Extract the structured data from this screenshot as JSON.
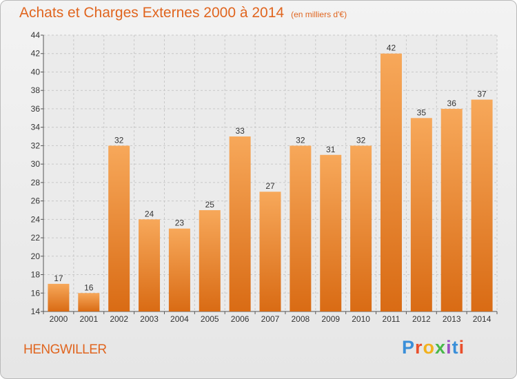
{
  "header": {
    "title": "Achats et Charges Externes 2000 à 2014",
    "unit": "(en milliers d'€)"
  },
  "footer": {
    "location": "HENGWILLER",
    "logo": "Proxiti"
  },
  "chart_data": {
    "type": "bar",
    "categories": [
      "2000",
      "2001",
      "2002",
      "2003",
      "2004",
      "2005",
      "2006",
      "2007",
      "2008",
      "2009",
      "2010",
      "2011",
      "2012",
      "2013",
      "2014"
    ],
    "values": [
      17,
      16,
      32,
      24,
      23,
      25,
      33,
      27,
      32,
      31,
      32,
      42,
      35,
      36,
      37
    ],
    "ylim": [
      14,
      44
    ],
    "yticks": [
      14,
      16,
      18,
      20,
      22,
      24,
      26,
      28,
      30,
      32,
      34,
      36,
      38,
      40,
      42,
      44
    ],
    "grid": true,
    "bar_color_top": "#f7a85a",
    "bar_color_bottom": "#d96b14"
  }
}
